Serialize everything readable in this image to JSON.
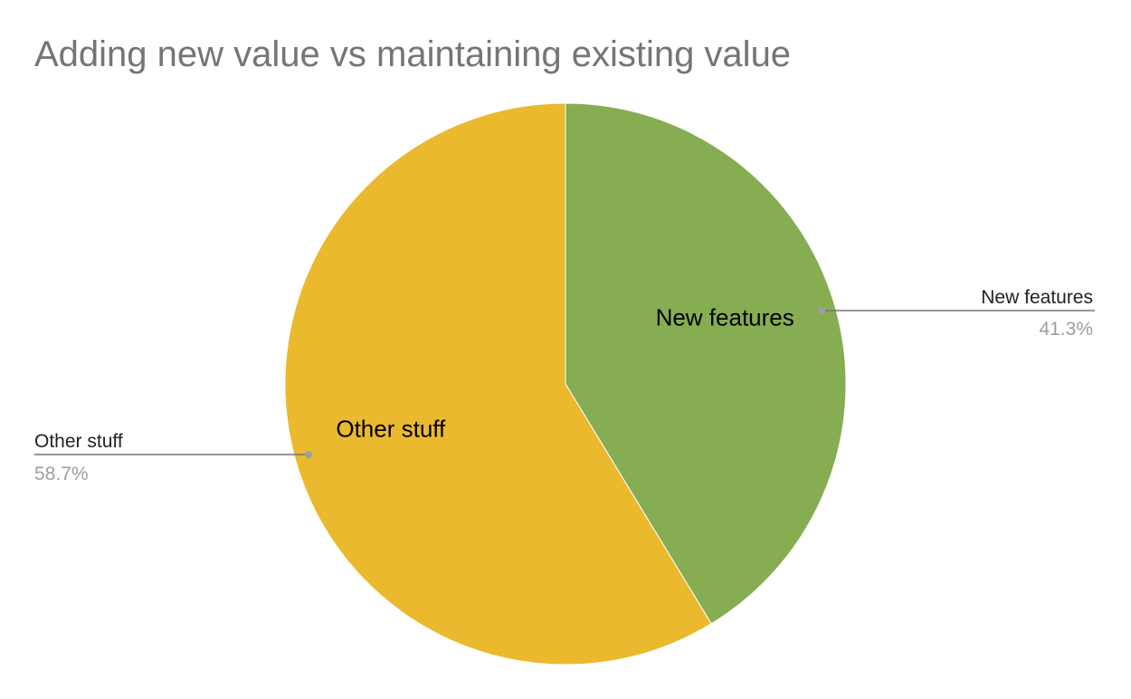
{
  "chart_data": {
    "type": "pie",
    "title": "Adding new value vs maintaining existing value",
    "slices": [
      {
        "label": "New features",
        "value": 41.3,
        "percent_label": "41.3%",
        "color": "#86AD51"
      },
      {
        "label": "Other stuff",
        "value": 58.7,
        "percent_label": "58.7%",
        "color": "#EAB92E"
      }
    ],
    "start_angle": "12 o'clock",
    "direction": "clockwise",
    "legend": "none",
    "slice_labels": "inside",
    "callout_labels": "outside with leader lines"
  }
}
